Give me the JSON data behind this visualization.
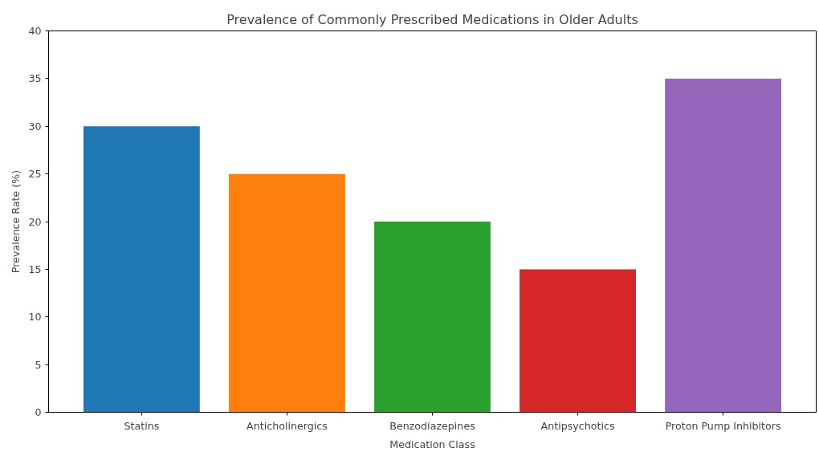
{
  "chart_data": {
    "type": "bar",
    "title": "Prevalence of Commonly Prescribed Medications in Older Adults",
    "xlabel": "Medication Class",
    "ylabel": "Prevalence Rate (%)",
    "categories": [
      "Statins",
      "Anticholinergics",
      "Benzodiazepines",
      "Antipsychotics",
      "Proton Pump Inhibitors"
    ],
    "values": [
      30,
      25,
      20,
      15,
      35
    ],
    "colors": [
      "#1f77b4",
      "#ff7f0e",
      "#2ca02c",
      "#d62728",
      "#9467bd"
    ],
    "ylim": [
      0,
      40
    ],
    "yticks": [
      0,
      5,
      10,
      15,
      20,
      25,
      30,
      35,
      40
    ],
    "grid": false
  }
}
